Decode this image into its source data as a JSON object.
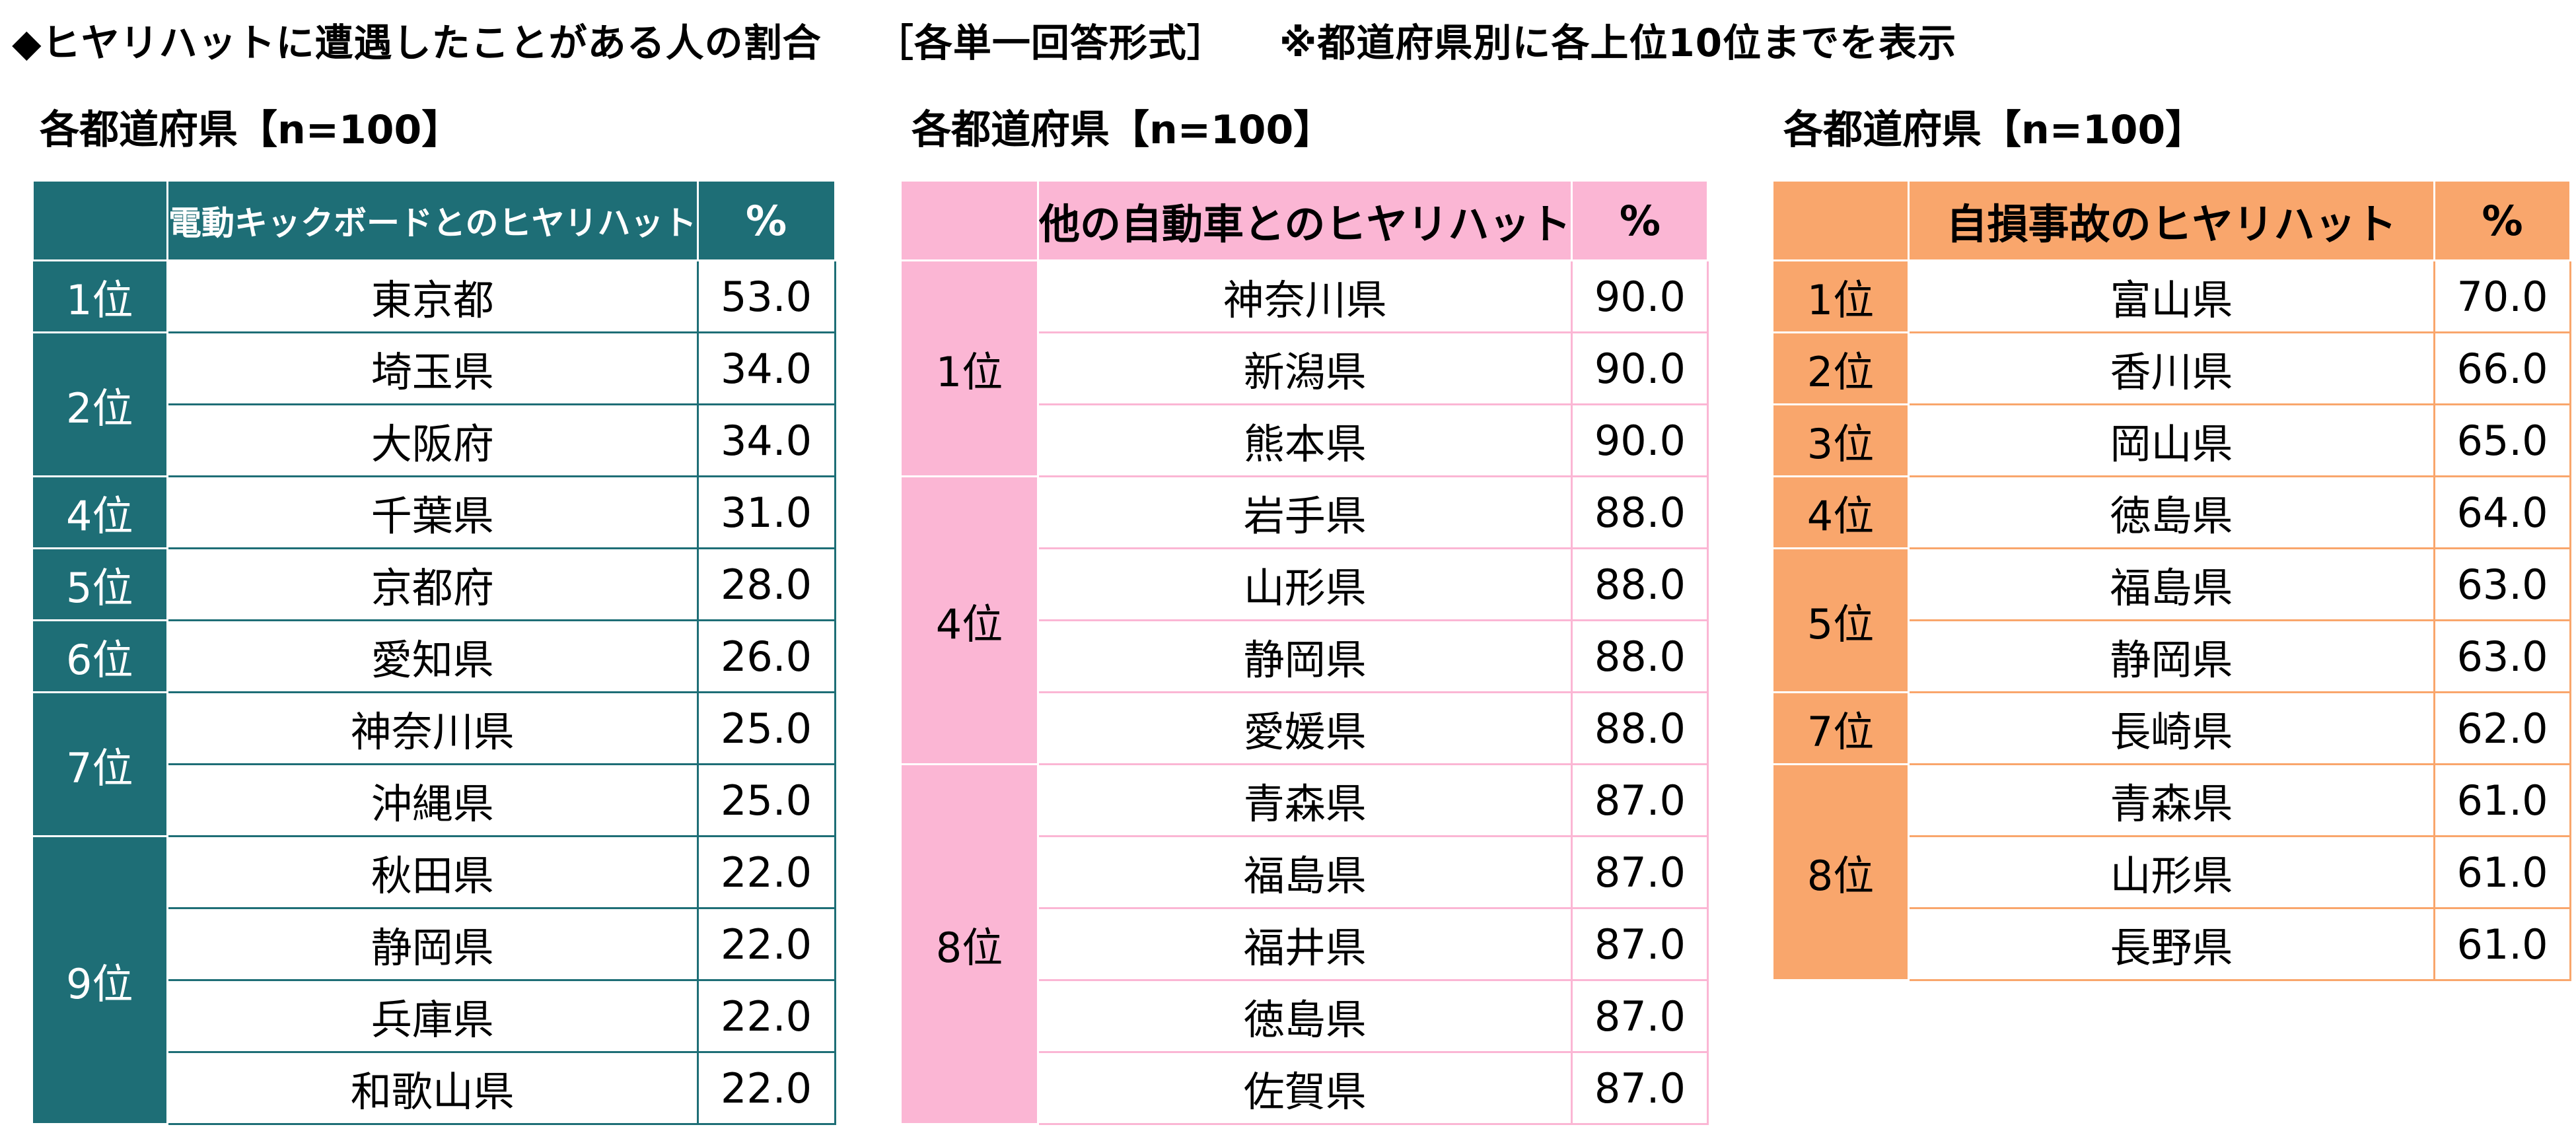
{
  "header": {
    "title": "◆ヒヤリハットに遭遇したことがある人の割合",
    "format": "［各単一回答形式］",
    "note": "※都道府県別に各上位10位までを表示"
  },
  "colors": {
    "teal": "#1e6e76",
    "pink": "#fbb6d4",
    "orange": "#f9a66c"
  },
  "tables": [
    {
      "subtitle": "各都道府県【n=100】",
      "header_item": "電動キックボードとのヒヤリハット",
      "header_pct": "%",
      "rows": [
        {
          "rank": "1位",
          "pref": "東京都",
          "value": "53.0"
        },
        {
          "rank": "2位",
          "pref": "埼玉県",
          "value": "34.0"
        },
        {
          "rank": "",
          "pref": "大阪府",
          "value": "34.0"
        },
        {
          "rank": "4位",
          "pref": "千葉県",
          "value": "31.0"
        },
        {
          "rank": "5位",
          "pref": "京都府",
          "value": "28.0"
        },
        {
          "rank": "6位",
          "pref": "愛知県",
          "value": "26.0"
        },
        {
          "rank": "7位",
          "pref": "神奈川県",
          "value": "25.0"
        },
        {
          "rank": "",
          "pref": "沖縄県",
          "value": "25.0"
        },
        {
          "rank": "9位",
          "pref": "秋田県",
          "value": "22.0"
        },
        {
          "rank": "",
          "pref": "静岡県",
          "value": "22.0"
        },
        {
          "rank": "",
          "pref": "兵庫県",
          "value": "22.0"
        },
        {
          "rank": "",
          "pref": "和歌山県",
          "value": "22.0"
        }
      ]
    },
    {
      "subtitle": "各都道府県【n=100】",
      "header_item": "他の自動車とのヒヤリハット",
      "header_pct": "%",
      "rows": [
        {
          "rank": "1位",
          "pref": "神奈川県",
          "value": "90.0"
        },
        {
          "rank": "",
          "pref": "新潟県",
          "value": "90.0"
        },
        {
          "rank": "",
          "pref": "熊本県",
          "value": "90.0"
        },
        {
          "rank": "4位",
          "pref": "岩手県",
          "value": "88.0"
        },
        {
          "rank": "",
          "pref": "山形県",
          "value": "88.0"
        },
        {
          "rank": "",
          "pref": "静岡県",
          "value": "88.0"
        },
        {
          "rank": "",
          "pref": "愛媛県",
          "value": "88.0"
        },
        {
          "rank": "8位",
          "pref": "青森県",
          "value": "87.0"
        },
        {
          "rank": "",
          "pref": "福島県",
          "value": "87.0"
        },
        {
          "rank": "",
          "pref": "福井県",
          "value": "87.0"
        },
        {
          "rank": "",
          "pref": "徳島県",
          "value": "87.0"
        },
        {
          "rank": "",
          "pref": "佐賀県",
          "value": "87.0"
        }
      ]
    },
    {
      "subtitle": "各都道府県【n=100】",
      "header_item": "自損事故のヒヤリハット",
      "header_pct": "%",
      "rows": [
        {
          "rank": "1位",
          "pref": "富山県",
          "value": "70.0"
        },
        {
          "rank": "2位",
          "pref": "香川県",
          "value": "66.0"
        },
        {
          "rank": "3位",
          "pref": "岡山県",
          "value": "65.0"
        },
        {
          "rank": "4位",
          "pref": "徳島県",
          "value": "64.0"
        },
        {
          "rank": "5位",
          "pref": "福島県",
          "value": "63.0"
        },
        {
          "rank": "",
          "pref": "静岡県",
          "value": "63.0"
        },
        {
          "rank": "7位",
          "pref": "長崎県",
          "value": "62.0"
        },
        {
          "rank": "8位",
          "pref": "青森県",
          "value": "61.0"
        },
        {
          "rank": "",
          "pref": "山形県",
          "value": "61.0"
        },
        {
          "rank": "",
          "pref": "長野県",
          "value": "61.0"
        }
      ]
    }
  ]
}
